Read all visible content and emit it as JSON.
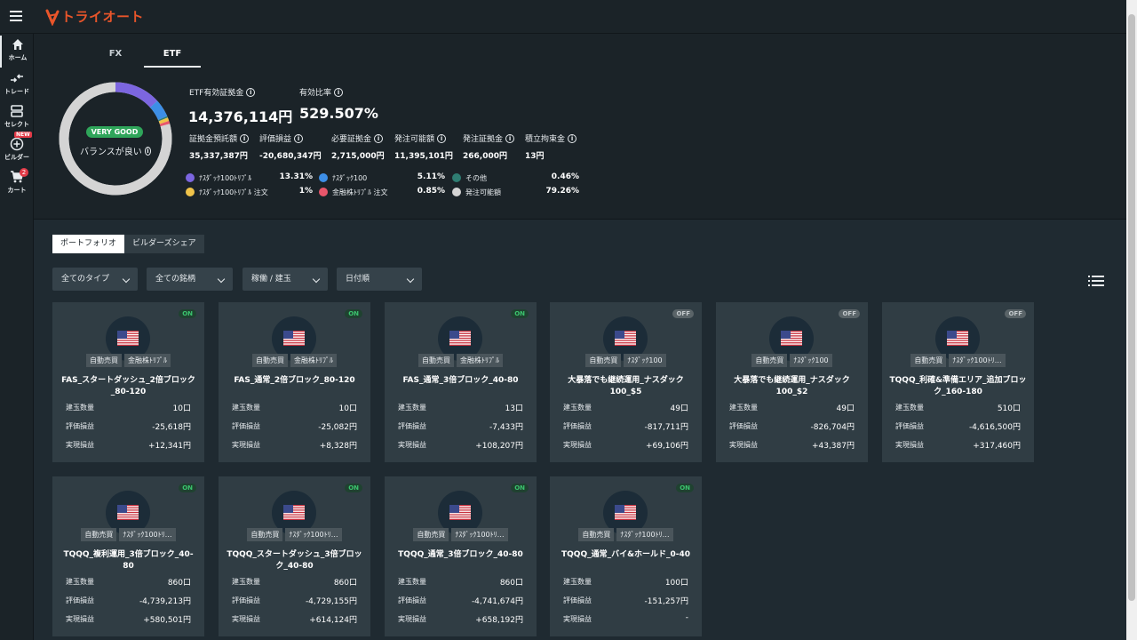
{
  "header": {
    "logo_text": "トライオート",
    "brand_color": "#e9552a"
  },
  "sidebar": {
    "items": [
      {
        "label": "ホーム",
        "icon": "home-icon"
      },
      {
        "label": "トレード",
        "icon": "trade-icon"
      },
      {
        "label": "セレクト",
        "icon": "select-icon"
      },
      {
        "label": "ビルダー",
        "icon": "builder-icon",
        "badge": "NEW"
      },
      {
        "label": "カート",
        "icon": "cart-icon",
        "badge": "2"
      }
    ]
  },
  "summary": {
    "tabs": [
      "FX",
      "ETF"
    ],
    "active_tab": "ETF",
    "donut": {
      "badge": "VERY GOOD",
      "text": "バランスが良い",
      "segments": [
        {
          "name": "ﾅｽﾀﾞｯｸ100ﾄﾘﾌﾟﾙ",
          "percent": 13.31,
          "color": "#7c66e0"
        },
        {
          "name": "ﾅｽﾀﾞｯｸ100",
          "percent": 5.11,
          "color": "#3d8ee6"
        },
        {
          "name": "その他",
          "percent": 0.46,
          "color": "#2f7d72"
        },
        {
          "name": "ﾅｽﾀﾞｯｸ100ﾄﾘﾌﾟﾙ 注文",
          "percent": 1,
          "color": "#f0c34a"
        },
        {
          "name": "金融株ﾄﾘﾌﾟﾙ 注文",
          "percent": 0.85,
          "color": "#e8566b"
        },
        {
          "name": "発注可能額",
          "percent": 79.26,
          "color": "#d4d4d4"
        }
      ]
    },
    "etf_margin_label": "ETF有効証拠金",
    "etf_margin_value": "14,376,114円",
    "effective_ratio_label": "有効比率",
    "effective_ratio_value": "529.507%",
    "metrics": [
      {
        "label": "証拠金預託額",
        "value": "35,337,387円"
      },
      {
        "label": "評価損益",
        "value": "-20,680,347円"
      },
      {
        "label": "必要証拠金",
        "value": "2,715,000円"
      },
      {
        "label": "発注可能額",
        "value": "11,395,101円"
      },
      {
        "label": "発注証拠金",
        "value": "266,000円"
      },
      {
        "label": "積立拘束金",
        "value": "13円"
      }
    ],
    "legend": [
      {
        "name": "ﾅｽﾀﾞｯｸ100ﾄﾘﾌﾟﾙ",
        "pct": "13.31%",
        "color": "#7c66e0"
      },
      {
        "name": "ﾅｽﾀﾞｯｸ100",
        "pct": "5.11%",
        "color": "#3d8ee6"
      },
      {
        "name": "その他",
        "pct": "0.46%",
        "color": "#2f7d72"
      },
      {
        "name": "ﾅｽﾀﾞｯｸ100ﾄﾘﾌﾟﾙ 注文",
        "pct": "1%",
        "color": "#f0c34a"
      },
      {
        "name": "金融株ﾄﾘﾌﾟﾙ 注文",
        "pct": "0.85%",
        "color": "#e8566b"
      },
      {
        "name": "発注可能額",
        "pct": "79.26%",
        "color": "#d4d4d4"
      }
    ]
  },
  "portfolio": {
    "tabs": [
      "ポートフォリオ",
      "ビルダーズシェア"
    ],
    "filters": [
      "全てのタイプ",
      "全ての銘柄",
      "稼働 / 建玉",
      "日付順"
    ],
    "row_labels": [
      "建玉数量",
      "評価損益",
      "実現損益"
    ],
    "cards": [
      {
        "status": "ON",
        "tags": [
          "自動売買",
          "金融株ﾄﾘﾌﾟﾙ"
        ],
        "title": "FAS_スタートダッシュ_2倍ブロック_80-120",
        "qty": "10口",
        "eval": "-25,618円",
        "realized": "+12,341円"
      },
      {
        "status": "ON",
        "tags": [
          "自動売買",
          "金融株ﾄﾘﾌﾟﾙ"
        ],
        "title": "FAS_通常_2倍ブロック_80-120",
        "qty": "10口",
        "eval": "-25,082円",
        "realized": "+8,328円"
      },
      {
        "status": "ON",
        "tags": [
          "自動売買",
          "金融株ﾄﾘﾌﾟﾙ"
        ],
        "title": "FAS_通常_3倍ブロック_40-80",
        "qty": "13口",
        "eval": "-7,433円",
        "realized": "+108,207円"
      },
      {
        "status": "OFF",
        "tags": [
          "自動売買",
          "ﾅｽﾀﾞｯｸ100"
        ],
        "title": "大暴落でも継続運用_ナスダック100_$5",
        "qty": "49口",
        "eval": "-817,711円",
        "realized": "+69,106円"
      },
      {
        "status": "OFF",
        "tags": [
          "自動売買",
          "ﾅｽﾀﾞｯｸ100"
        ],
        "title": "大暴落でも継続運用_ナスダック100_$2",
        "qty": "49口",
        "eval": "-826,704円",
        "realized": "+43,387円"
      },
      {
        "status": "OFF",
        "tags": [
          "自動売買",
          "ﾅｽﾀﾞｯｸ100ﾄﾘ…"
        ],
        "title": "TQQQ_利確&準備エリア_追加ブロック_160-180",
        "qty": "510口",
        "eval": "-4,616,500円",
        "realized": "+317,460円"
      },
      {
        "status": "ON",
        "tags": [
          "自動売買",
          "ﾅｽﾀﾞｯｸ100ﾄﾘ…"
        ],
        "title": "TQQQ_複利運用_3倍ブロック_40-80",
        "qty": "860口",
        "eval": "-4,739,213円",
        "realized": "+580,501円"
      },
      {
        "status": "ON",
        "tags": [
          "自動売買",
          "ﾅｽﾀﾞｯｸ100ﾄﾘ…"
        ],
        "title": "TQQQ_スタートダッシュ_3倍ブロック_40-80",
        "qty": "860口",
        "eval": "-4,729,155円",
        "realized": "+614,124円"
      },
      {
        "status": "ON",
        "tags": [
          "自動売買",
          "ﾅｽﾀﾞｯｸ100ﾄﾘ…"
        ],
        "title": "TQQQ_通常_3倍ブロック_40-80",
        "qty": "860口",
        "eval": "-4,741,674円",
        "realized": "+658,192円"
      },
      {
        "status": "ON",
        "tags": [
          "自動売買",
          "ﾅｽﾀﾞｯｸ100ﾄﾘ…"
        ],
        "title": "TQQQ_通常_バイ&ホールド_0-40",
        "qty": "100口",
        "eval": "-151,257円",
        "realized": "-"
      }
    ]
  }
}
